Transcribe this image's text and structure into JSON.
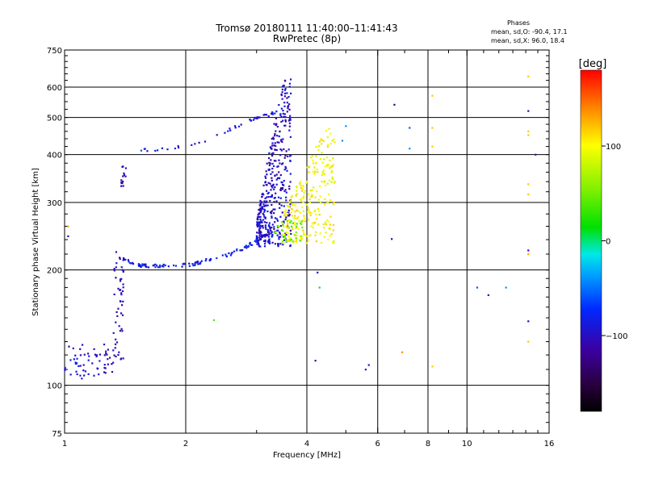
{
  "header": {
    "title_line1": "Tromsø 20180111 11:40:00–11:41:43",
    "title_line2": "RwPretec (8p)",
    "phases_label": "Phases",
    "phases_o": "mean, sd,O: -90.4, 17.1",
    "phases_x": "mean, sd,X:  96.0, 18.4"
  },
  "colorbar": {
    "unit_label": "[deg]",
    "ticks": [
      {
        "value": 100,
        "label": "100"
      },
      {
        "value": 0,
        "label": "0"
      },
      {
        "value": -100,
        "label": "−100"
      }
    ],
    "range": [
      -180,
      180
    ]
  },
  "chart_data": {
    "type": "scatter",
    "xlabel": "Frequency [MHz]",
    "ylabel": "Stationary phase Virtual Height [km]",
    "xscale": "log",
    "yscale": "log",
    "xlim": [
      1,
      16
    ],
    "ylim": [
      75,
      750
    ],
    "grid": true,
    "x_ticks": [
      {
        "v": 1,
        "label": "1"
      },
      {
        "v": 2,
        "label": "2"
      },
      {
        "v": 4,
        "label": "4"
      },
      {
        "v": 6,
        "label": "6"
      },
      {
        "v": 8,
        "label": "8"
      },
      {
        "v": 10,
        "label": "10"
      },
      {
        "v": 16,
        "label": "16"
      }
    ],
    "y_ticks": [
      {
        "v": 75,
        "label": "75"
      },
      {
        "v": 100,
        "label": "100"
      },
      {
        "v": 200,
        "label": "200"
      },
      {
        "v": 300,
        "label": "300"
      },
      {
        "v": 400,
        "label": "400"
      },
      {
        "v": 500,
        "label": "500"
      },
      {
        "v": 600,
        "label": "600"
      },
      {
        "v": 750,
        "label": "750"
      }
    ],
    "x_major_grid": [
      2,
      4,
      6,
      8,
      10
    ],
    "y_major_grid": [
      100,
      200,
      300,
      400,
      500,
      600
    ],
    "traces": [
      {
        "name": "E layer low band",
        "phase": -100,
        "x_range": [
          1.0,
          1.33
        ],
        "y_range": [
          104,
          128
        ],
        "n": 60
      },
      {
        "name": "E layer rise",
        "phase": -105,
        "x_range": [
          1.32,
          1.4
        ],
        "y_range": [
          115,
          230
        ],
        "n": 50
      },
      {
        "name": "E layer spikes",
        "phase": -110,
        "x_range": [
          1.38,
          1.42
        ],
        "y_range": [
          330,
          380
        ],
        "n": 14
      },
      {
        "name": "F trace low",
        "phase": -85,
        "x": [
          1.4,
          1.5,
          1.6,
          1.8,
          2.0,
          2.2,
          2.5,
          2.8,
          3.0,
          3.2
        ],
        "y": [
          215,
          206,
          205,
          205,
          206,
          210,
          218,
          228,
          238,
          250
        ],
        "n": 120
      },
      {
        "name": "F trace upper",
        "phase": -95,
        "x": [
          1.55,
          2.0,
          2.3,
          2.6,
          2.9,
          3.1,
          3.25,
          3.35
        ],
        "y": [
          410,
          420,
          440,
          465,
          490,
          505,
          510,
          520
        ],
        "n": 45
      },
      {
        "name": "O-mode cusp",
        "phase": -100,
        "x_range": [
          3.0,
          3.65
        ],
        "y_range": [
          230,
          650
        ],
        "n": 420
      },
      {
        "name": "X-mode cusp",
        "phase": 100,
        "x_range": [
          3.5,
          4.7
        ],
        "y_range": [
          235,
          480
        ],
        "n": 260
      },
      {
        "name": "O/X boundary",
        "phase": 50,
        "x_range": [
          3.3,
          3.9
        ],
        "y_range": [
          235,
          270
        ],
        "n": 40
      }
    ],
    "isolated_points": [
      {
        "x": 1.02,
        "y": 260,
        "phase": 130
      },
      {
        "x": 1.02,
        "y": 245,
        "phase": -100
      },
      {
        "x": 1.55,
        "y": 410,
        "phase": -60
      },
      {
        "x": 2.35,
        "y": 148,
        "phase": 40
      },
      {
        "x": 4.3,
        "y": 180,
        "phase": 10
      },
      {
        "x": 4.25,
        "y": 197,
        "phase": -90
      },
      {
        "x": 4.2,
        "y": 116,
        "phase": -100
      },
      {
        "x": 4.9,
        "y": 435,
        "phase": -40
      },
      {
        "x": 5.0,
        "y": 475,
        "phase": -40
      },
      {
        "x": 5.6,
        "y": 110,
        "phase": -100
      },
      {
        "x": 5.7,
        "y": 113,
        "phase": -100
      },
      {
        "x": 6.5,
        "y": 241,
        "phase": -110
      },
      {
        "x": 6.6,
        "y": 540,
        "phase": -130
      },
      {
        "x": 6.9,
        "y": 122,
        "phase": 140
      },
      {
        "x": 7.2,
        "y": 470,
        "phase": -60
      },
      {
        "x": 7.2,
        "y": 415,
        "phase": -40
      },
      {
        "x": 8.2,
        "y": 570,
        "phase": 120
      },
      {
        "x": 8.2,
        "y": 470,
        "phase": 120
      },
      {
        "x": 8.2,
        "y": 420,
        "phase": 120
      },
      {
        "x": 8.2,
        "y": 112,
        "phase": 120
      },
      {
        "x": 10.6,
        "y": 180,
        "phase": -60
      },
      {
        "x": 11.3,
        "y": 172,
        "phase": -100
      },
      {
        "x": 12.5,
        "y": 180,
        "phase": -40
      },
      {
        "x": 14.2,
        "y": 640,
        "phase": 120
      },
      {
        "x": 14.2,
        "y": 520,
        "phase": -110
      },
      {
        "x": 14.2,
        "y": 460,
        "phase": 120
      },
      {
        "x": 14.2,
        "y": 450,
        "phase": 120
      },
      {
        "x": 14.8,
        "y": 400,
        "phase": -100
      },
      {
        "x": 14.2,
        "y": 335,
        "phase": 120
      },
      {
        "x": 14.2,
        "y": 315,
        "phase": 120
      },
      {
        "x": 14.2,
        "y": 225,
        "phase": -110
      },
      {
        "x": 14.2,
        "y": 220,
        "phase": 130
      },
      {
        "x": 14.2,
        "y": 147,
        "phase": -110
      },
      {
        "x": 14.2,
        "y": 130,
        "phase": 120
      }
    ]
  }
}
